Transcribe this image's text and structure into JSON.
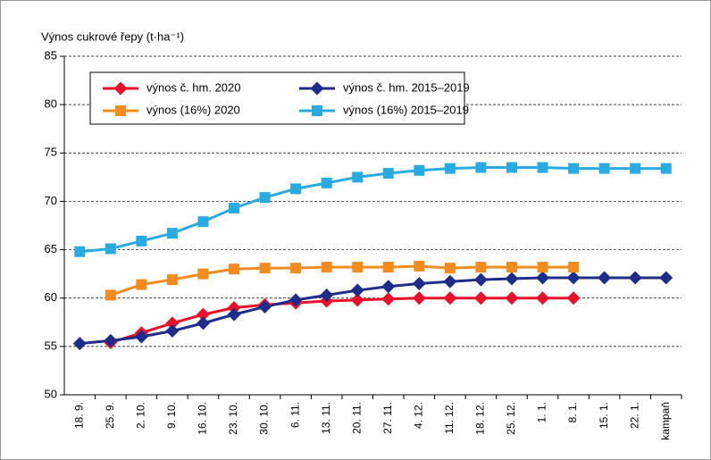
{
  "chart_data": {
    "type": "line",
    "y_label": "Výnos cukrové řepy (t·ha⁻¹)",
    "categories": [
      "18. 9.",
      "25. 9.",
      "2. 10.",
      "9. 10.",
      "16. 10.",
      "23. 10.",
      "30. 10.",
      "6. 11.",
      "13. 11.",
      "20. 11.",
      "27. 11.",
      "4. 12.",
      "11. 12.",
      "18. 12.",
      "25. 12.",
      "1. 1.",
      "8. 1.",
      "15. 1.",
      "22. 1.",
      "kampaň"
    ],
    "series": [
      {
        "name": "výnos č. hm.  2020",
        "color": "#e8102a",
        "marker": "diamond",
        "values": [
          null,
          55.4,
          56.4,
          57.4,
          58.3,
          59.0,
          59.3,
          59.5,
          59.7,
          59.8,
          59.9,
          60.0,
          60.0,
          60.0,
          60.0,
          60.0,
          60.0,
          null,
          null,
          null
        ]
      },
      {
        "name": "výnos č. hm.  2015–2019",
        "color": "#1f2d8a",
        "marker": "diamond",
        "values": [
          55.3,
          55.6,
          56.0,
          56.6,
          57.4,
          58.3,
          59.1,
          59.8,
          60.3,
          60.8,
          61.2,
          61.5,
          61.7,
          61.9,
          62.0,
          62.1,
          62.1,
          62.1,
          62.1,
          62.1
        ]
      },
      {
        "name": "výnos (16%)  2020",
        "color": "#f28c1e",
        "marker": "square",
        "values": [
          null,
          60.3,
          61.4,
          61.9,
          62.5,
          63.0,
          63.1,
          63.1,
          63.2,
          63.2,
          63.2,
          63.3,
          63.1,
          63.2,
          63.2,
          63.2,
          63.2,
          null,
          null,
          null
        ]
      },
      {
        "name": "výnos (16%)  2015–2019",
        "color": "#29abe2",
        "marker": "square",
        "values": [
          64.8,
          65.1,
          65.9,
          66.7,
          67.9,
          69.3,
          70.4,
          71.3,
          71.9,
          72.5,
          72.9,
          73.2,
          73.4,
          73.5,
          73.5,
          73.5,
          73.4,
          73.4,
          73.4,
          73.4
        ]
      }
    ],
    "ylim": [
      50,
      85
    ],
    "yticks": [
      50,
      55,
      60,
      65,
      70,
      75,
      80,
      85
    ],
    "grid": true,
    "legend": "upper left"
  }
}
